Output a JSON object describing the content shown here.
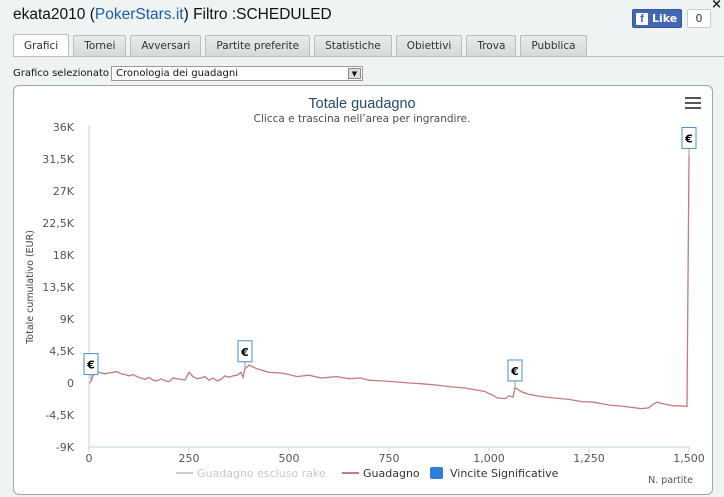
{
  "header": {
    "user": "ekata2010",
    "open_paren": " (",
    "site": "PokerStars.it",
    "rest": ") Filtro :SCHEDULED",
    "close_label": "×"
  },
  "facebook": {
    "like_label": "Like",
    "icon": "f",
    "count": "0"
  },
  "tabs": [
    {
      "label": "Grafici",
      "active": true
    },
    {
      "label": "Tornei"
    },
    {
      "label": "Avversari"
    },
    {
      "label": "Partite preferite"
    },
    {
      "label": "Statistiche"
    },
    {
      "label": "Obiettivi"
    },
    {
      "label": "Trova"
    },
    {
      "label": "Pubblica"
    }
  ],
  "selector": {
    "label": "Grafico selezionato",
    "value": "Cronologia dei guadagni"
  },
  "chart_data": {
    "type": "line",
    "title": "Totale guadagno",
    "subtitle": "Clicca e trascina nell’area per ingrandire.",
    "ylabel": "Totale cumulativo (EUR)",
    "xlabel": "N. partite",
    "ylim": [
      -9000,
      36000
    ],
    "xlim": [
      0,
      1500
    ],
    "y_ticks": [
      {
        "v": 36000,
        "label": "36K"
      },
      {
        "v": 31500,
        "label": "31,5K"
      },
      {
        "v": 27000,
        "label": "27K"
      },
      {
        "v": 22500,
        "label": "22,5K"
      },
      {
        "v": 18000,
        "label": "18K"
      },
      {
        "v": 13500,
        "label": "13,5K"
      },
      {
        "v": 9000,
        "label": "9K"
      },
      {
        "v": 4500,
        "label": "4,5K"
      },
      {
        "v": 0,
        "label": "0"
      },
      {
        "v": -4500,
        "label": "-4,5K"
      },
      {
        "v": -9000,
        "label": "-9K"
      }
    ],
    "x_ticks": [
      {
        "v": 0,
        "label": "0"
      },
      {
        "v": 250,
        "label": "250"
      },
      {
        "v": 500,
        "label": "500"
      },
      {
        "v": 750,
        "label": "750"
      },
      {
        "v": 1000,
        "label": "1,000"
      },
      {
        "v": 1250,
        "label": "1,250"
      },
      {
        "v": 1500,
        "label": "1,500"
      }
    ],
    "series": [
      {
        "name": "Guadagno escluso rake",
        "color": "#cccccc",
        "values": []
      },
      {
        "name": "Guadagno",
        "color": "#c87a7a",
        "x": [
          0,
          5,
          10,
          15,
          25,
          40,
          50,
          60,
          70,
          80,
          90,
          100,
          110,
          120,
          130,
          140,
          150,
          160,
          170,
          180,
          190,
          200,
          210,
          220,
          230,
          240,
          250,
          260,
          270,
          280,
          290,
          300,
          310,
          320,
          330,
          340,
          350,
          360,
          370,
          380,
          385,
          390,
          400,
          420,
          450,
          480,
          500,
          520,
          550,
          580,
          600,
          620,
          650,
          680,
          700,
          730,
          760,
          800,
          830,
          870,
          900,
          940,
          970,
          990,
          1000,
          1010,
          1020,
          1040,
          1050,
          1060,
          1065,
          1070,
          1080,
          1100,
          1130,
          1160,
          1200,
          1230,
          1260,
          1300,
          1340,
          1380,
          1400,
          1410,
          1420,
          1440,
          1460,
          1480,
          1495,
          1500
        ],
        "values": [
          0,
          200,
          1000,
          1400,
          1500,
          1300,
          1400,
          1500,
          1600,
          1300,
          1200,
          1000,
          1200,
          900,
          700,
          500,
          800,
          400,
          300,
          600,
          300,
          200,
          700,
          600,
          500,
          400,
          1500,
          900,
          600,
          700,
          900,
          400,
          700,
          300,
          500,
          1000,
          800,
          1000,
          1100,
          1500,
          800,
          2000,
          2500,
          2000,
          1500,
          1400,
          1200,
          900,
          1100,
          700,
          800,
          900,
          600,
          700,
          400,
          300,
          200,
          0,
          -100,
          -300,
          -500,
          -700,
          -1000,
          -1200,
          -1500,
          -1700,
          -2100,
          -2200,
          -1800,
          -2000,
          -700,
          -800,
          -1200,
          -1600,
          -1900,
          -2100,
          -2300,
          -2600,
          -2700,
          -3100,
          -3300,
          -3600,
          -3500,
          -3000,
          -2700,
          -3000,
          -3200,
          -3200,
          -3300,
          32000
        ]
      },
      {
        "name": "Vincite Significative",
        "color": "#2f7ed8",
        "values": []
      }
    ],
    "flags": [
      {
        "x": 5,
        "y": 200,
        "label": "€"
      },
      {
        "x": 390,
        "y": 2000,
        "label": "€"
      },
      {
        "x": 1065,
        "y": -700,
        "label": "€"
      },
      {
        "x": 1500,
        "y": 32000,
        "label": "€"
      }
    ]
  }
}
